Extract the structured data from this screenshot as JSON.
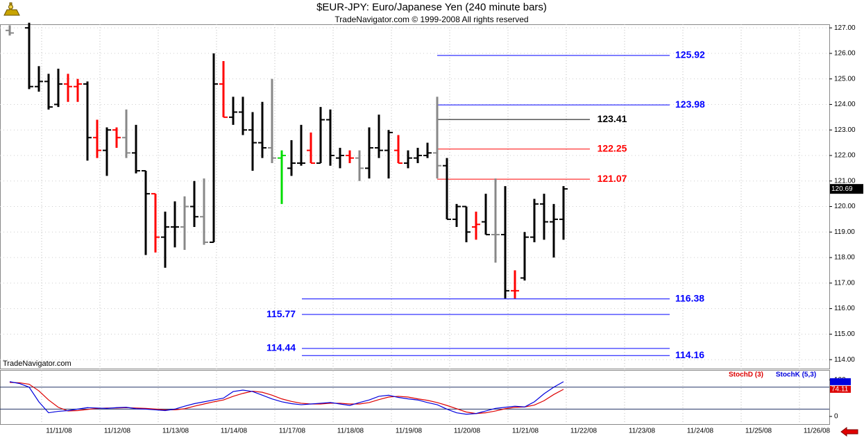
{
  "chart_data": {
    "type": "ohlc",
    "title": "$EUR-JPY:  Euro/Japanese Yen  (240 minute bars)",
    "subtitle": "TradeNavigator.com © 1999-2008 All rights reserved",
    "watermark": "TradeNavigator.com",
    "dates": [
      "11/11/08",
      "11/12/08",
      "11/13/08",
      "11/14/08",
      "11/17/08",
      "11/18/08",
      "11/19/08",
      "11/20/08",
      "11/21/08",
      "11/22/08",
      "11/23/08",
      "11/24/08",
      "11/25/08",
      "11/26/08"
    ],
    "open": [
      126.9,
      null,
      127.0,
      124.7,
      124.9,
      124.0,
      124.8,
      124.7,
      124.8,
      122.7,
      122.2,
      123.0,
      122.7,
      122.1,
      121.4,
      120.5,
      118.8,
      119.2,
      119.2,
      120.0,
      119.6,
      118.6,
      124.8,
      123.5,
      123.7,
      123.0,
      122.5,
      122.3,
      121.9,
      121.5,
      121.7,
      122.2,
      121.7,
      123.4,
      121.9,
      122.0,
      121.9,
      121.5,
      122.3,
      122.2,
      122.2,
      121.7,
      121.9,
      122.0,
      122.1,
      121.6,
      119.5,
      120.0,
      119.2,
      119.4,
      118.9,
      118.9,
      116.7,
      117.2,
      118.8,
      120.1,
      119.4,
      119.5
    ],
    "high": [
      127.1,
      null,
      127.2,
      125.5,
      125.2,
      125.4,
      125.2,
      125.0,
      124.9,
      123.4,
      123.1,
      123.1,
      123.8,
      123.2,
      121.4,
      120.5,
      119.8,
      120.2,
      120.4,
      121.0,
      121.1,
      126.0,
      125.7,
      124.3,
      124.3,
      123.7,
      124.1,
      125.0,
      122.2,
      122.6,
      123.2,
      122.9,
      123.9,
      123.8,
      122.3,
      122.2,
      122.2,
      123.1,
      123.6,
      123.0,
      122.8,
      122.2,
      122.3,
      122.5,
      124.3,
      121.9,
      120.1,
      120.0,
      119.8,
      120.5,
      121.1,
      120.8,
      117.5,
      119.0,
      120.3,
      120.5,
      120.1,
      120.8
    ],
    "low": [
      126.7,
      null,
      124.6,
      124.5,
      123.8,
      123.9,
      124.1,
      124.1,
      121.8,
      121.9,
      121.2,
      122.3,
      121.9,
      121.3,
      118.1,
      118.2,
      117.6,
      118.4,
      118.3,
      119.2,
      118.5,
      118.6,
      123.5,
      123.2,
      122.8,
      121.4,
      121.9,
      121.7,
      120.1,
      121.2,
      121.6,
      121.7,
      121.7,
      121.6,
      121.5,
      121.7,
      121.0,
      121.1,
      121.9,
      121.1,
      121.7,
      121.5,
      121.7,
      121.9,
      121.1,
      119.5,
      119.2,
      118.6,
      118.7,
      118.9,
      117.8,
      116.4,
      116.4,
      117.1,
      118.6,
      118.7,
      118.0,
      118.7
    ],
    "close": [
      126.8,
      null,
      124.7,
      124.9,
      123.9,
      124.8,
      124.7,
      124.8,
      122.7,
      122.2,
      123.0,
      122.7,
      122.1,
      121.4,
      120.5,
      118.8,
      119.2,
      119.2,
      120.0,
      119.6,
      118.6,
      124.8,
      123.5,
      123.7,
      123.0,
      122.5,
      122.3,
      121.9,
      122.0,
      121.7,
      121.7,
      121.7,
      123.4,
      122.0,
      122.0,
      121.9,
      121.5,
      122.3,
      122.2,
      122.9,
      121.7,
      121.9,
      122.0,
      122.1,
      121.6,
      119.5,
      120.0,
      119.0,
      119.3,
      118.9,
      118.9,
      116.7,
      116.7,
      118.8,
      120.1,
      119.4,
      119.5,
      120.69
    ],
    "bar_colors": [
      "#888888",
      null,
      "#000000",
      "#000000",
      "#000000",
      "#000000",
      "#ff0000",
      "#ff0000",
      "#000000",
      "#ff0000",
      "#000000",
      "#ff0000",
      "#888888",
      "#000000",
      "#000000",
      "#ff0000",
      "#000000",
      "#000000",
      "#888888",
      "#000000",
      "#888888",
      "#000000",
      "#ff0000",
      "#000000",
      "#000000",
      "#000000",
      "#000000",
      "#888888",
      "#00dd00",
      "#000000",
      "#000000",
      "#ff0000",
      "#000000",
      "#000000",
      "#000000",
      "#ff0000",
      "#888888",
      "#000000",
      "#000000",
      "#000000",
      "#ff0000",
      "#000000",
      "#000000",
      "#000000",
      "#888888",
      "#000000",
      "#000000",
      "#000000",
      "#ff0000",
      "#000000",
      "#888888",
      "#000000",
      "#ff0000",
      "#000000",
      "#000000",
      "#000000",
      "#000000",
      "#000000"
    ],
    "ylim": [
      113.65,
      127.14
    ],
    "yticks": [
      {
        "value": 114,
        "label": "114.00"
      },
      {
        "value": 115,
        "label": "115.00"
      },
      {
        "value": 116,
        "label": "116.00"
      },
      {
        "value": 117,
        "label": "117.00"
      },
      {
        "value": 118,
        "label": "118.00"
      },
      {
        "value": 119,
        "label": "119.00"
      },
      {
        "value": 120,
        "label": "120.00"
      },
      {
        "value": 121,
        "label": "121.00"
      },
      {
        "value": 122,
        "label": "122.00"
      },
      {
        "value": 123,
        "label": "123.00"
      },
      {
        "value": 124,
        "label": "124.00"
      },
      {
        "value": 125,
        "label": "125.00"
      },
      {
        "value": 126,
        "label": "126.00"
      },
      {
        "value": 127,
        "label": "127.00"
      }
    ],
    "levels": [
      {
        "value": 125.92,
        "color": "#0000ff"
      },
      {
        "value": 123.98,
        "color": "#0000ff"
      },
      {
        "value": 123.41,
        "color": "#000000"
      },
      {
        "value": 122.25,
        "color": "#ff0000"
      },
      {
        "value": 121.07,
        "color": "#ff0000"
      },
      {
        "value": 116.38,
        "color": "#0000ff"
      },
      {
        "value": 115.77,
        "color": "#0000ff"
      },
      {
        "value": 114.44,
        "color": "#0000ff"
      },
      {
        "value": 114.16,
        "color": "#0000ff"
      }
    ],
    "stoch": {
      "ylim": [
        -21,
        127
      ],
      "yticks": [
        0,
        100
      ],
      "levels": [
        80,
        20
      ],
      "series": [
        {
          "name": "StochD (3)",
          "color": "#dd0000",
          "values": [
            93,
            92,
            88,
            70,
            45,
            25,
            15,
            16,
            19,
            22,
            23,
            23,
            24,
            23,
            22,
            20,
            18,
            18,
            21,
            28,
            34,
            40,
            45,
            55,
            63,
            69,
            66,
            58,
            48,
            41,
            36,
            34,
            34,
            36,
            36,
            34,
            34,
            38,
            46,
            53,
            55,
            53,
            48,
            44,
            38,
            30,
            21,
            12,
            8,
            10,
            15,
            21,
            25,
            26,
            31,
            43,
            60,
            74.11
          ]
        },
        {
          "name": "StochK (5,3)",
          "color": "#0000dd",
          "values": [
            95,
            90,
            80,
            40,
            10,
            14,
            16,
            20,
            24,
            23,
            22,
            24,
            25,
            21,
            20,
            18,
            16,
            20,
            28,
            35,
            40,
            45,
            50,
            68,
            72,
            68,
            58,
            48,
            40,
            35,
            32,
            34,
            36,
            38,
            34,
            30,
            38,
            45,
            55,
            58,
            52,
            48,
            45,
            38,
            32,
            20,
            10,
            6,
            8,
            15,
            22,
            25,
            28,
            26,
            40,
            62,
            80,
            95
          ]
        }
      ]
    }
  }
}
